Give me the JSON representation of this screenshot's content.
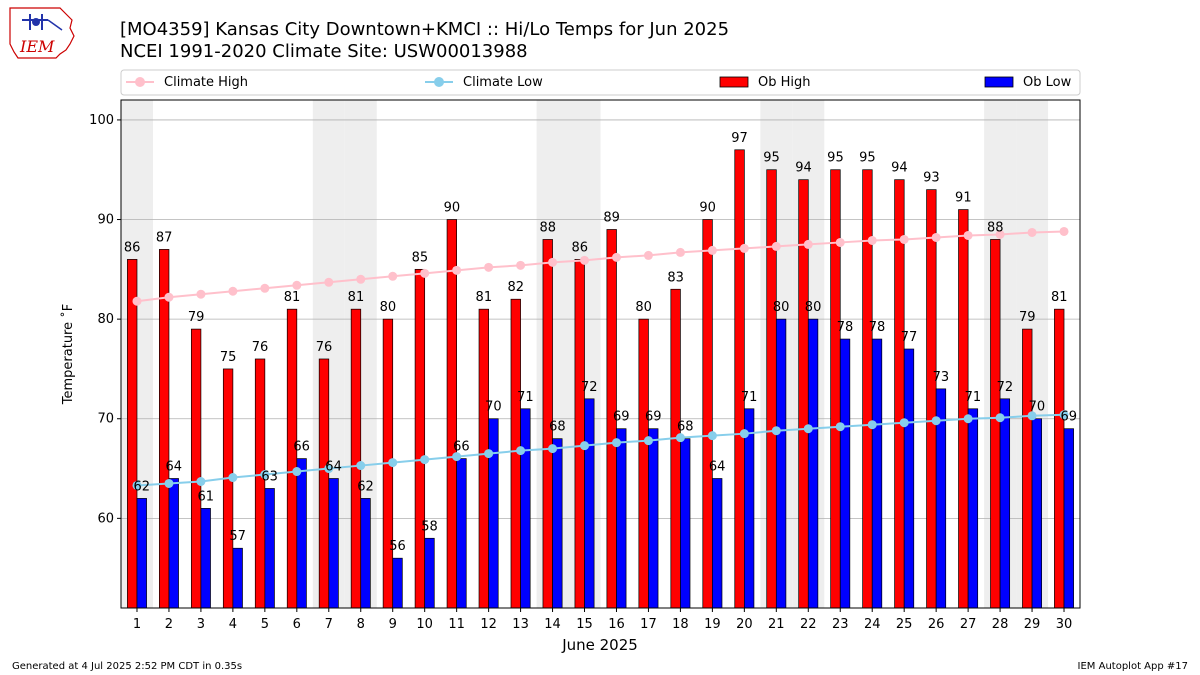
{
  "header": {
    "title_line1": "[MO4359] Kansas City Downtown+KMCI :: Hi/Lo Temps for Jun 2025",
    "title_line2": "NCEI 1991-2020 Climate Site: USW00013988",
    "logo_text": "IEM"
  },
  "footer": {
    "left": "Generated at 4 Jul 2025 2:52 PM CDT in 0.35s",
    "right": "IEM Autoplot App #17"
  },
  "colors": {
    "ob_high": "#ff0000",
    "ob_low": "#0000ff",
    "climate_high": "#ffc0cb",
    "climate_low": "#87ceeb",
    "weekend_band": "#eeeeee",
    "grid": "#b0b0b0"
  },
  "chart_data": {
    "type": "bar",
    "xlabel": "June 2025",
    "ylabel": "Temperature ˚F",
    "ylim": [
      51,
      102
    ],
    "yticks": [
      60,
      70,
      80,
      90,
      100
    ],
    "grid": "horizontal",
    "legend_placement": "top",
    "legend": [
      "Climate High",
      "Climate Low",
      "Ob High",
      "Ob Low"
    ],
    "shaded_days": [
      1,
      7,
      8,
      14,
      15,
      21,
      22,
      28,
      29
    ],
    "categories": [
      "1",
      "2",
      "3",
      "4",
      "5",
      "6",
      "7",
      "8",
      "9",
      "10",
      "11",
      "12",
      "13",
      "14",
      "15",
      "16",
      "17",
      "18",
      "19",
      "20",
      "21",
      "22",
      "23",
      "24",
      "25",
      "26",
      "27",
      "28",
      "29",
      "30"
    ],
    "series": [
      {
        "name": "Ob High",
        "type": "bar",
        "values": [
          86,
          87,
          79,
          75,
          76,
          81,
          76,
          81,
          80,
          85,
          90,
          81,
          82,
          88,
          86,
          89,
          80,
          83,
          90,
          97,
          95,
          94,
          95,
          95,
          94,
          93,
          91,
          88,
          79,
          81
        ]
      },
      {
        "name": "Ob Low",
        "type": "bar",
        "values": [
          62,
          64,
          61,
          57,
          63,
          66,
          64,
          62,
          56,
          58,
          66,
          70,
          71,
          68,
          72,
          69,
          69,
          68,
          64,
          71,
          80,
          80,
          78,
          78,
          77,
          73,
          71,
          72,
          70,
          69
        ]
      },
      {
        "name": "Climate High",
        "type": "line",
        "values": [
          81.8,
          82.2,
          82.5,
          82.8,
          83.1,
          83.4,
          83.7,
          84.0,
          84.3,
          84.6,
          84.9,
          85.2,
          85.4,
          85.7,
          85.9,
          86.2,
          86.4,
          86.7,
          86.9,
          87.1,
          87.3,
          87.5,
          87.7,
          87.9,
          88.0,
          88.2,
          88.4,
          88.5,
          88.7,
          88.8
        ]
      },
      {
        "name": "Climate Low",
        "type": "line",
        "values": [
          63.3,
          63.5,
          63.7,
          64.1,
          64.4,
          64.7,
          65.0,
          65.3,
          65.6,
          65.9,
          66.2,
          66.5,
          66.8,
          67.0,
          67.3,
          67.6,
          67.8,
          68.1,
          68.3,
          68.5,
          68.8,
          69.0,
          69.2,
          69.4,
          69.6,
          69.8,
          70.0,
          70.1,
          70.3,
          70.4
        ]
      }
    ]
  }
}
